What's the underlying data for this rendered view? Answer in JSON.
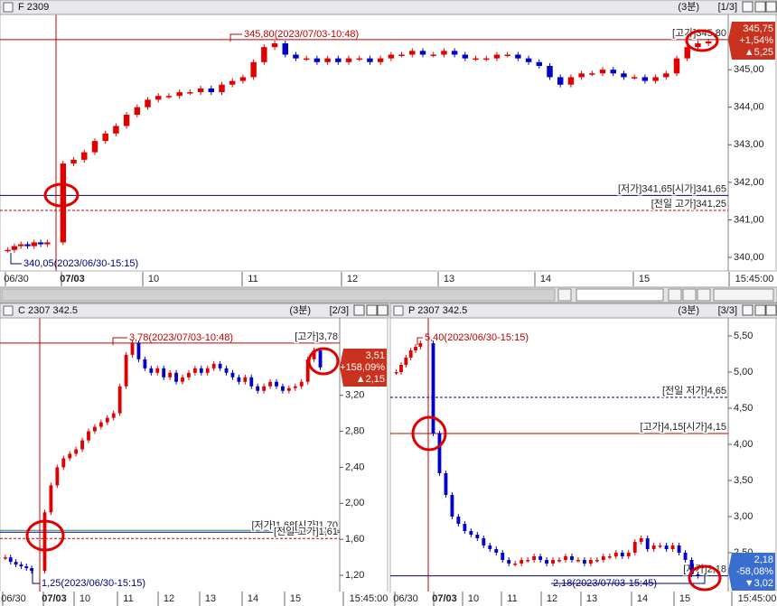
{
  "panels": [
    {
      "title": "F 2309",
      "period": "(3분)",
      "page": "[1/3]",
      "ylim": [
        339.64,
        346.47
      ],
      "yticks": [
        {
          "value": 340,
          "label": "340,00"
        },
        {
          "value": 341,
          "label": "341,00"
        },
        {
          "value": 342,
          "label": "342,00"
        },
        {
          "value": 343,
          "label": "343,00"
        },
        {
          "value": 344,
          "label": "344,00"
        },
        {
          "value": 345,
          "label": "345,00"
        }
      ],
      "x_labels": [
        "06/30",
        "07/03",
        "10",
        "11",
        "12",
        "13",
        "14",
        "15",
        "15:45:00"
      ],
      "closes": [
        340.2,
        340.3,
        340.35,
        340.3,
        340.4,
        340.35,
        340.4,
        342.5,
        342.6,
        342.8,
        343.1,
        343.3,
        343.5,
        343.8,
        344.0,
        344.2,
        344.3,
        344.3,
        344.4,
        344.4,
        344.5,
        344.4,
        344.6,
        344.7,
        344.8,
        345.2,
        345.6,
        345.7,
        345.4,
        345.3,
        345.3,
        345.2,
        345.3,
        345.2,
        345.3,
        345.3,
        345.2,
        345.3,
        345.4,
        345.4,
        345.5,
        345.4,
        345.4,
        345.5,
        345.4,
        345.3,
        345.3,
        345.3,
        345.4,
        345.4,
        345.3,
        345.2,
        345.1,
        344.8,
        344.6,
        344.8,
        344.9,
        344.9,
        345.0,
        344.9,
        344.8,
        344.8,
        344.7,
        344.8,
        344.9,
        345.3,
        345.6,
        345.7,
        345.75
      ],
      "levels": [
        {
          "value": 345.8,
          "label": "[고가]345,80",
          "color": "#c00000",
          "dashed": false
        },
        {
          "value": 341.65,
          "label": "[저가]341,65[시가]341,65",
          "color": "#000080",
          "dashed": false
        },
        {
          "value": 341.25,
          "label": "[전일 고가]341,25",
          "color": "#c00000",
          "dashed": true
        }
      ],
      "notes": [
        {
          "text": "345,80(2023/07/03-10:48)",
          "color": "#c00000"
        },
        {
          "text": "340,05(2023/06/30-15:15)",
          "color": "#000080"
        }
      ],
      "price_box": {
        "price": "345,75",
        "change": "+1,54%",
        "diff": "▲5,25",
        "color": "#c8321e"
      }
    },
    {
      "title": "C 2307 342.5",
      "period": "(3분)",
      "page": "[2/3]",
      "ylim": [
        1.01,
        4.06
      ],
      "yticks": [
        {
          "value": 1.2,
          "label": "1,20"
        },
        {
          "value": 1.6,
          "label": "1,60"
        },
        {
          "value": 2.0,
          "label": "2,00"
        },
        {
          "value": 2.4,
          "label": "2,40"
        },
        {
          "value": 2.8,
          "label": "2,80"
        },
        {
          "value": 3.2,
          "label": "3,20"
        }
      ],
      "x_labels": [
        "06/30",
        "07/03",
        "10",
        "11",
        "12",
        "13",
        "14",
        "15",
        "15:45:00"
      ],
      "closes": [
        1.4,
        1.35,
        1.32,
        1.3,
        1.28,
        1.25,
        1.9,
        2.2,
        2.4,
        2.5,
        2.55,
        2.6,
        2.7,
        2.8,
        2.85,
        2.9,
        2.95,
        3.0,
        3.3,
        3.65,
        3.78,
        3.6,
        3.5,
        3.45,
        3.5,
        3.4,
        3.45,
        3.35,
        3.4,
        3.45,
        3.5,
        3.45,
        3.5,
        3.55,
        3.5,
        3.45,
        3.4,
        3.35,
        3.4,
        3.3,
        3.25,
        3.3,
        3.35,
        3.3,
        3.25,
        3.28,
        3.3,
        3.35,
        3.6,
        3.7,
        3.51
      ],
      "levels": [
        {
          "value": 3.78,
          "label": "[고가]3,78",
          "color": "#c00000",
          "dashed": false
        },
        {
          "value": 1.7,
          "color": "#2e8b57",
          "dashed": false
        },
        {
          "value": 1.68,
          "label": "[저가]1,68[시가]1,70",
          "color": "#000080",
          "dashed": false
        },
        {
          "value": 1.61,
          "label": "[전일 고가]1,61",
          "color": "#c00000",
          "dashed": true
        }
      ],
      "notes": [
        {
          "text": "3,78(2023/07/03-10:48)",
          "color": "#c00000"
        },
        {
          "text": "1,25(2023/06/30-15:15)",
          "color": "#000080"
        }
      ],
      "price_box": {
        "price": "3,51",
        "change": "+158,09%",
        "diff": "▲2,15",
        "color": "#c8321e"
      }
    },
    {
      "title": "P 2307 342.5",
      "period": "(3분)",
      "page": "[3/3]",
      "ylim": [
        1.95,
        5.75
      ],
      "yticks": [
        {
          "value": 2.5,
          "label": "2,50"
        },
        {
          "value": 3.0,
          "label": "3,00"
        },
        {
          "value": 3.5,
          "label": "3,50"
        },
        {
          "value": 4.0,
          "label": "4,00"
        },
        {
          "value": 4.5,
          "label": "4,50"
        },
        {
          "value": 5.0,
          "label": "5,00"
        },
        {
          "value": 5.5,
          "label": "5,50"
        }
      ],
      "x_labels": [
        "06/30",
        "07/03",
        "10",
        "11",
        "12",
        "13",
        "14",
        "15",
        "15:45:00"
      ],
      "closes": [
        5.0,
        5.1,
        5.2,
        5.3,
        5.35,
        5.4,
        4.15,
        3.6,
        3.3,
        3.0,
        2.9,
        2.8,
        2.75,
        2.7,
        2.6,
        2.55,
        2.5,
        2.4,
        2.35,
        2.35,
        2.4,
        2.4,
        2.45,
        2.4,
        2.35,
        2.4,
        2.4,
        2.45,
        2.4,
        2.4,
        2.35,
        2.4,
        2.4,
        2.45,
        2.45,
        2.5,
        2.45,
        2.5,
        2.65,
        2.7,
        2.55,
        2.6,
        2.6,
        2.55,
        2.6,
        2.5,
        2.4,
        2.2,
        2.18
      ],
      "levels": [
        {
          "value": 4.65,
          "label": "[전일 저가]4,65",
          "color": "#000080",
          "dashed": true
        },
        {
          "value": 4.15,
          "label": "[고가]4,15[시가]4,15",
          "color": "#c00000",
          "dashed": false
        },
        {
          "value": 2.18,
          "label": "[저가]2,18",
          "color": "#000080",
          "dashed": false
        }
      ],
      "notes": [
        {
          "text": "5,40(2023/06/30-15:15)",
          "color": "#c00000"
        },
        {
          "text": "2,18(2023/07/03-15:45)",
          "color": "#000080"
        }
      ],
      "price_box": {
        "price": "2,18",
        "change": "-58,08%",
        "diff": "▼3,02",
        "color": "#3a6fd0"
      }
    }
  ]
}
